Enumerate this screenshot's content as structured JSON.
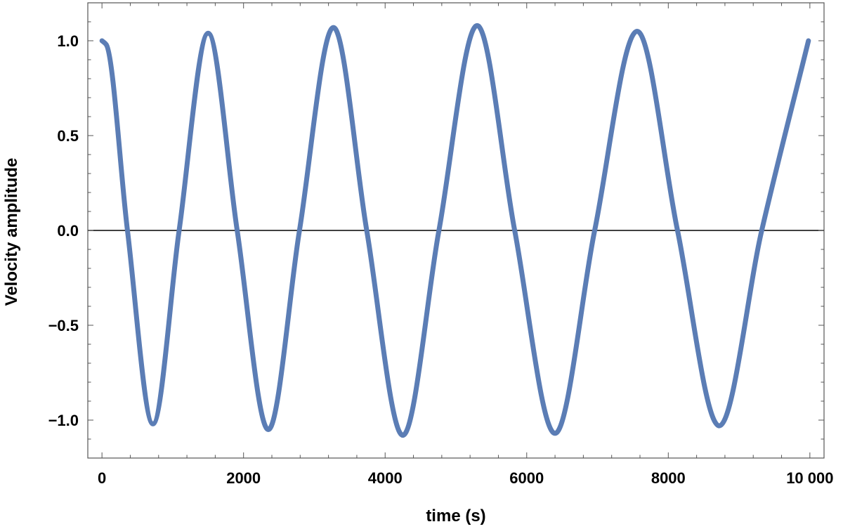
{
  "chart_data": {
    "type": "line",
    "title": "",
    "xlabel": "time (s)",
    "ylabel": "Velocity amplitude",
    "xlim": [
      -200,
      10200
    ],
    "ylim": [
      -1.2,
      1.2
    ],
    "x_ticks": [
      0,
      2000,
      4000,
      6000,
      8000,
      10000
    ],
    "x_tick_labels": [
      "0",
      "2000",
      "4000",
      "6000",
      "8000",
      "10 000"
    ],
    "y_ticks": [
      1.0,
      0.5,
      0.0,
      -0.5,
      -1.0
    ],
    "y_tick_labels": [
      "1.0",
      "0.5",
      "0.0",
      "−0.5",
      "−1.0"
    ],
    "zero_line": true,
    "grid": false,
    "series_color": "#5b7db5",
    "series": [
      {
        "x": [
          0,
          60,
          360,
          720,
          1090,
          1500,
          1910,
          2350,
          2790,
          3270,
          3740,
          4250,
          4760,
          5300,
          5830,
          6400,
          6960,
          7560,
          8130,
          8720,
          9320,
          9980
        ],
        "y": [
          1.0,
          0.98,
          0.0,
          -1.02,
          0.0,
          1.04,
          0.0,
          -1.05,
          0.0,
          1.07,
          0.0,
          -1.08,
          0.0,
          1.08,
          0.0,
          -1.07,
          0.0,
          1.05,
          0.0,
          -1.03,
          0.0,
          1.0
        ]
      }
    ]
  }
}
